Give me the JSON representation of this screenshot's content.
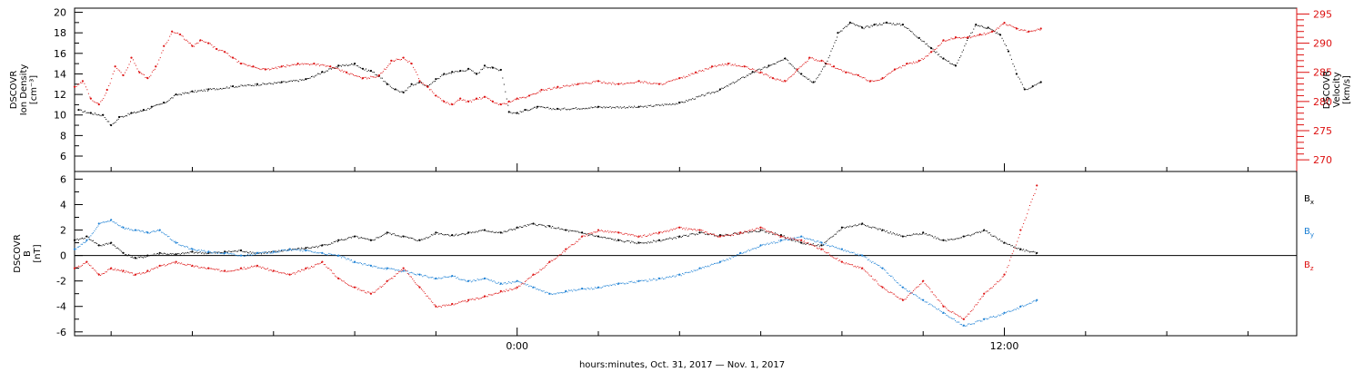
{
  "chart_data": [
    {
      "type": "scatter",
      "panel": "top",
      "xlabel": "hours:minutes, Oct. 31, 2017 — Nov.  1, 2017",
      "x_ticks": [
        {
          "t": 0,
          "label": "0:00"
        },
        {
          "t": 12,
          "label": "12:00"
        }
      ],
      "xlim": [
        -10.9,
        19.2
      ],
      "left_axis": {
        "label_lines": [
          "DSCOVR",
          "Ion Density",
          "[cm⁻³]"
        ],
        "ylim": [
          4.5,
          20.4
        ],
        "ticks": [
          "6",
          "8",
          "10",
          "12",
          "14",
          "16",
          "18",
          "20"
        ],
        "color": "#000000"
      },
      "right_axis": {
        "label_lines": [
          "DSCOVR",
          "Velocity",
          "[km/s]"
        ],
        "ylim": [
          268,
          296
        ],
        "ticks": [
          "270",
          "275",
          "280",
          "285",
          "290",
          "295"
        ],
        "color": "#dd1111"
      },
      "series": [
        {
          "axis": "left",
          "color": "#000000",
          "x": [
            -10.8,
            -10.5,
            -10.2,
            -10.0,
            -9.8,
            -9.5,
            -9.2,
            -9.0,
            -8.7,
            -8.4,
            -8.0,
            -7.6,
            -7.0,
            -6.4,
            -5.8,
            -5.2,
            -4.8,
            -4.4,
            -4.0,
            -3.8,
            -3.6,
            -3.4,
            -3.2,
            -3.0,
            -2.8,
            -2.6,
            -2.4,
            -2.2,
            -2.0,
            -1.8,
            -1.6,
            -1.4,
            -1.2,
            -1.0,
            -0.8,
            -0.6,
            -0.4,
            -0.2,
            0.0,
            0.2,
            0.5,
            1.0,
            2.0,
            3.0,
            4.0,
            5.0,
            5.8,
            6.2,
            6.6,
            7.0,
            7.3,
            7.6,
            7.9,
            8.2,
            8.5,
            8.8,
            9.1,
            9.5,
            9.9,
            10.2,
            10.5,
            10.8,
            11.1,
            11.3,
            11.6,
            11.9,
            12.1,
            12.3,
            12.5,
            12.7,
            12.9
          ],
          "y": [
            10.5,
            10.2,
            10.0,
            9.0,
            9.8,
            10.2,
            10.5,
            10.8,
            11.2,
            12.0,
            12.3,
            12.5,
            12.8,
            13.0,
            13.2,
            13.5,
            14.2,
            14.8,
            15.0,
            14.5,
            14.3,
            13.8,
            13.0,
            12.5,
            12.2,
            13.0,
            13.2,
            12.8,
            13.5,
            14.0,
            14.2,
            14.3,
            14.5,
            14.0,
            14.8,
            14.6,
            14.4,
            10.3,
            10.2,
            10.5,
            10.8,
            10.6,
            10.8,
            10.8,
            11.2,
            12.5,
            14.2,
            14.8,
            15.5,
            14.0,
            13.2,
            15.0,
            18.0,
            19.0,
            18.5,
            18.8,
            19.0,
            18.8,
            17.5,
            16.5,
            15.5,
            14.8,
            17.5,
            18.8,
            18.5,
            17.8,
            16.2,
            14.0,
            12.5,
            12.8,
            13.2
          ]
        },
        {
          "axis": "right",
          "color": "#dd1111",
          "x": [
            -10.9,
            -10.7,
            -10.5,
            -10.3,
            -10.1,
            -9.9,
            -9.7,
            -9.5,
            -9.3,
            -9.1,
            -8.9,
            -8.7,
            -8.5,
            -8.3,
            -8.0,
            -7.8,
            -7.6,
            -7.4,
            -7.2,
            -7.0,
            -6.8,
            -6.5,
            -6.2,
            -5.8,
            -5.4,
            -5.0,
            -4.6,
            -4.2,
            -3.8,
            -3.4,
            -3.1,
            -2.8,
            -2.6,
            -2.4,
            -2.2,
            -2.0,
            -1.8,
            -1.6,
            -1.4,
            -1.2,
            -1.0,
            -0.8,
            -0.6,
            -0.4,
            -0.2,
            0.0,
            0.3,
            0.6,
            1.0,
            1.5,
            2.0,
            2.5,
            3.0,
            3.5,
            4.0,
            4.4,
            4.8,
            5.2,
            5.6,
            6.0,
            6.3,
            6.6,
            6.9,
            7.2,
            7.5,
            7.8,
            8.1,
            8.4,
            8.7,
            9.0,
            9.3,
            9.6,
            9.9,
            10.2,
            10.5,
            10.8,
            11.1,
            11.4,
            11.7,
            12.0,
            12.3,
            12.6,
            12.9
          ],
          "y": [
            282.5,
            283.5,
            280.5,
            279.5,
            282.0,
            286.0,
            284.5,
            287.5,
            285.0,
            284.0,
            286.0,
            289.5,
            292.0,
            291.5,
            289.5,
            290.5,
            290.0,
            289.0,
            288.5,
            287.5,
            286.5,
            286.0,
            285.5,
            286.0,
            286.5,
            286.5,
            286.0,
            285.0,
            284.0,
            284.5,
            287.0,
            287.5,
            286.5,
            283.5,
            282.5,
            281.0,
            280.0,
            279.5,
            280.5,
            280.0,
            280.5,
            280.8,
            280.0,
            279.5,
            280.0,
            280.5,
            281.0,
            282.0,
            282.5,
            283.0,
            283.5,
            283.0,
            283.5,
            283.0,
            284.0,
            285.0,
            286.0,
            286.5,
            286.0,
            285.0,
            284.0,
            283.5,
            285.5,
            287.5,
            287.0,
            286.0,
            285.0,
            284.5,
            283.5,
            284.0,
            285.5,
            286.5,
            287.0,
            288.5,
            290.5,
            291.0,
            291.0,
            291.5,
            292.0,
            293.5,
            292.5,
            292.0,
            292.5
          ]
        }
      ]
    },
    {
      "type": "scatter",
      "panel": "bottom",
      "xlim": [
        -10.9,
        19.2
      ],
      "left_axis": {
        "label_lines": [
          "DSCOVR",
          "B",
          "[nT]"
        ],
        "ylim": [
          -6.3,
          6.6
        ],
        "ticks": [
          "-6",
          "-4",
          "-2",
          "0",
          "2",
          "4",
          "6"
        ],
        "color": "#000000"
      },
      "zero_line": true,
      "legend": [
        {
          "main": "B",
          "sub": "x",
          "color": "#000000"
        },
        {
          "main": "B",
          "sub": "y",
          "color": "#1a7fd4"
        },
        {
          "main": "B",
          "sub": "z",
          "color": "#dd1111"
        }
      ],
      "series": [
        {
          "axis": "left",
          "color": "#000000",
          "x": [
            -10.9,
            -10.6,
            -10.3,
            -10.0,
            -9.7,
            -9.4,
            -9.1,
            -8.8,
            -8.4,
            -8.0,
            -7.6,
            -7.2,
            -6.8,
            -6.4,
            -6.0,
            -5.6,
            -5.2,
            -4.8,
            -4.4,
            -4.0,
            -3.6,
            -3.2,
            -2.8,
            -2.4,
            -2.0,
            -1.6,
            -1.2,
            -0.8,
            -0.4,
            0.0,
            0.4,
            0.8,
            1.2,
            1.6,
            2.0,
            2.5,
            3.0,
            3.5,
            4.0,
            4.5,
            5.0,
            5.5,
            6.0,
            6.5,
            7.0,
            7.5,
            8.0,
            8.5,
            9.0,
            9.5,
            10.0,
            10.5,
            11.0,
            11.5,
            12.0,
            12.4,
            12.8
          ],
          "y": [
            1.2,
            1.5,
            0.8,
            1.0,
            0.2,
            -0.2,
            0.0,
            0.2,
            0.1,
            0.3,
            0.2,
            0.3,
            0.4,
            0.2,
            0.3,
            0.5,
            0.6,
            0.8,
            1.2,
            1.5,
            1.2,
            1.8,
            1.5,
            1.2,
            1.8,
            1.6,
            1.8,
            2.0,
            1.8,
            2.2,
            2.5,
            2.3,
            2.0,
            1.8,
            1.5,
            1.2,
            1.0,
            1.2,
            1.5,
            1.8,
            1.6,
            1.8,
            2.0,
            1.6,
            1.0,
            0.8,
            2.2,
            2.5,
            2.0,
            1.5,
            1.8,
            1.2,
            1.5,
            2.0,
            1.0,
            0.5,
            0.2
          ]
        },
        {
          "axis": "left",
          "color": "#1a7fd4",
          "x": [
            -10.9,
            -10.6,
            -10.3,
            -10.0,
            -9.7,
            -9.4,
            -9.1,
            -8.8,
            -8.4,
            -8.0,
            -7.6,
            -7.2,
            -6.8,
            -6.4,
            -6.0,
            -5.6,
            -5.2,
            -4.8,
            -4.4,
            -4.0,
            -3.6,
            -3.2,
            -2.8,
            -2.4,
            -2.0,
            -1.6,
            -1.2,
            -0.8,
            -0.4,
            0.0,
            0.4,
            0.8,
            1.2,
            1.6,
            2.0,
            2.5,
            3.0,
            3.5,
            4.0,
            4.5,
            5.0,
            5.5,
            6.0,
            6.5,
            7.0,
            7.5,
            8.0,
            8.5,
            9.0,
            9.5,
            10.0,
            10.5,
            11.0,
            11.5,
            12.0,
            12.4,
            12.8
          ],
          "y": [
            0.5,
            1.2,
            2.5,
            2.8,
            2.2,
            2.0,
            1.8,
            2.0,
            1.0,
            0.5,
            0.3,
            0.2,
            0.0,
            0.2,
            0.3,
            0.5,
            0.4,
            0.2,
            0.0,
            -0.5,
            -0.8,
            -1.0,
            -1.2,
            -1.5,
            -1.8,
            -1.6,
            -2.0,
            -1.8,
            -2.2,
            -2.0,
            -2.5,
            -3.0,
            -2.8,
            -2.6,
            -2.5,
            -2.2,
            -2.0,
            -1.8,
            -1.5,
            -1.0,
            -0.5,
            0.2,
            0.8,
            1.2,
            1.5,
            1.0,
            0.5,
            0.0,
            -1.0,
            -2.5,
            -3.5,
            -4.5,
            -5.5,
            -5.0,
            -4.5,
            -4.0,
            -3.5
          ]
        },
        {
          "axis": "left",
          "color": "#dd1111",
          "x": [
            -10.9,
            -10.6,
            -10.3,
            -10.0,
            -9.7,
            -9.4,
            -9.1,
            -8.8,
            -8.4,
            -8.0,
            -7.6,
            -7.2,
            -6.8,
            -6.4,
            -6.0,
            -5.6,
            -5.2,
            -4.8,
            -4.4,
            -4.0,
            -3.6,
            -3.2,
            -2.8,
            -2.4,
            -2.0,
            -1.6,
            -1.2,
            -0.8,
            -0.4,
            0.0,
            0.4,
            0.8,
            1.2,
            1.6,
            2.0,
            2.5,
            3.0,
            3.5,
            4.0,
            4.5,
            5.0,
            5.5,
            6.0,
            6.5,
            7.0,
            7.5,
            8.0,
            8.5,
            9.0,
            9.5,
            10.0,
            10.5,
            11.0,
            11.5,
            12.0,
            12.4,
            12.8
          ],
          "y": [
            -1.0,
            -0.5,
            -1.5,
            -1.0,
            -1.2,
            -1.5,
            -1.2,
            -0.8,
            -0.5,
            -0.8,
            -1.0,
            -1.2,
            -1.0,
            -0.8,
            -1.2,
            -1.5,
            -1.0,
            -0.5,
            -1.8,
            -2.5,
            -3.0,
            -2.0,
            -1.0,
            -2.5,
            -4.0,
            -3.8,
            -3.5,
            -3.2,
            -2.8,
            -2.5,
            -1.5,
            -0.5,
            0.5,
            1.5,
            2.0,
            1.8,
            1.5,
            1.8,
            2.2,
            2.0,
            1.5,
            1.8,
            2.2,
            1.5,
            1.2,
            0.5,
            -0.5,
            -1.0,
            -2.5,
            -3.5,
            -2.0,
            -4.0,
            -5.0,
            -3.0,
            -1.5,
            2.0,
            5.5
          ]
        }
      ]
    }
  ]
}
